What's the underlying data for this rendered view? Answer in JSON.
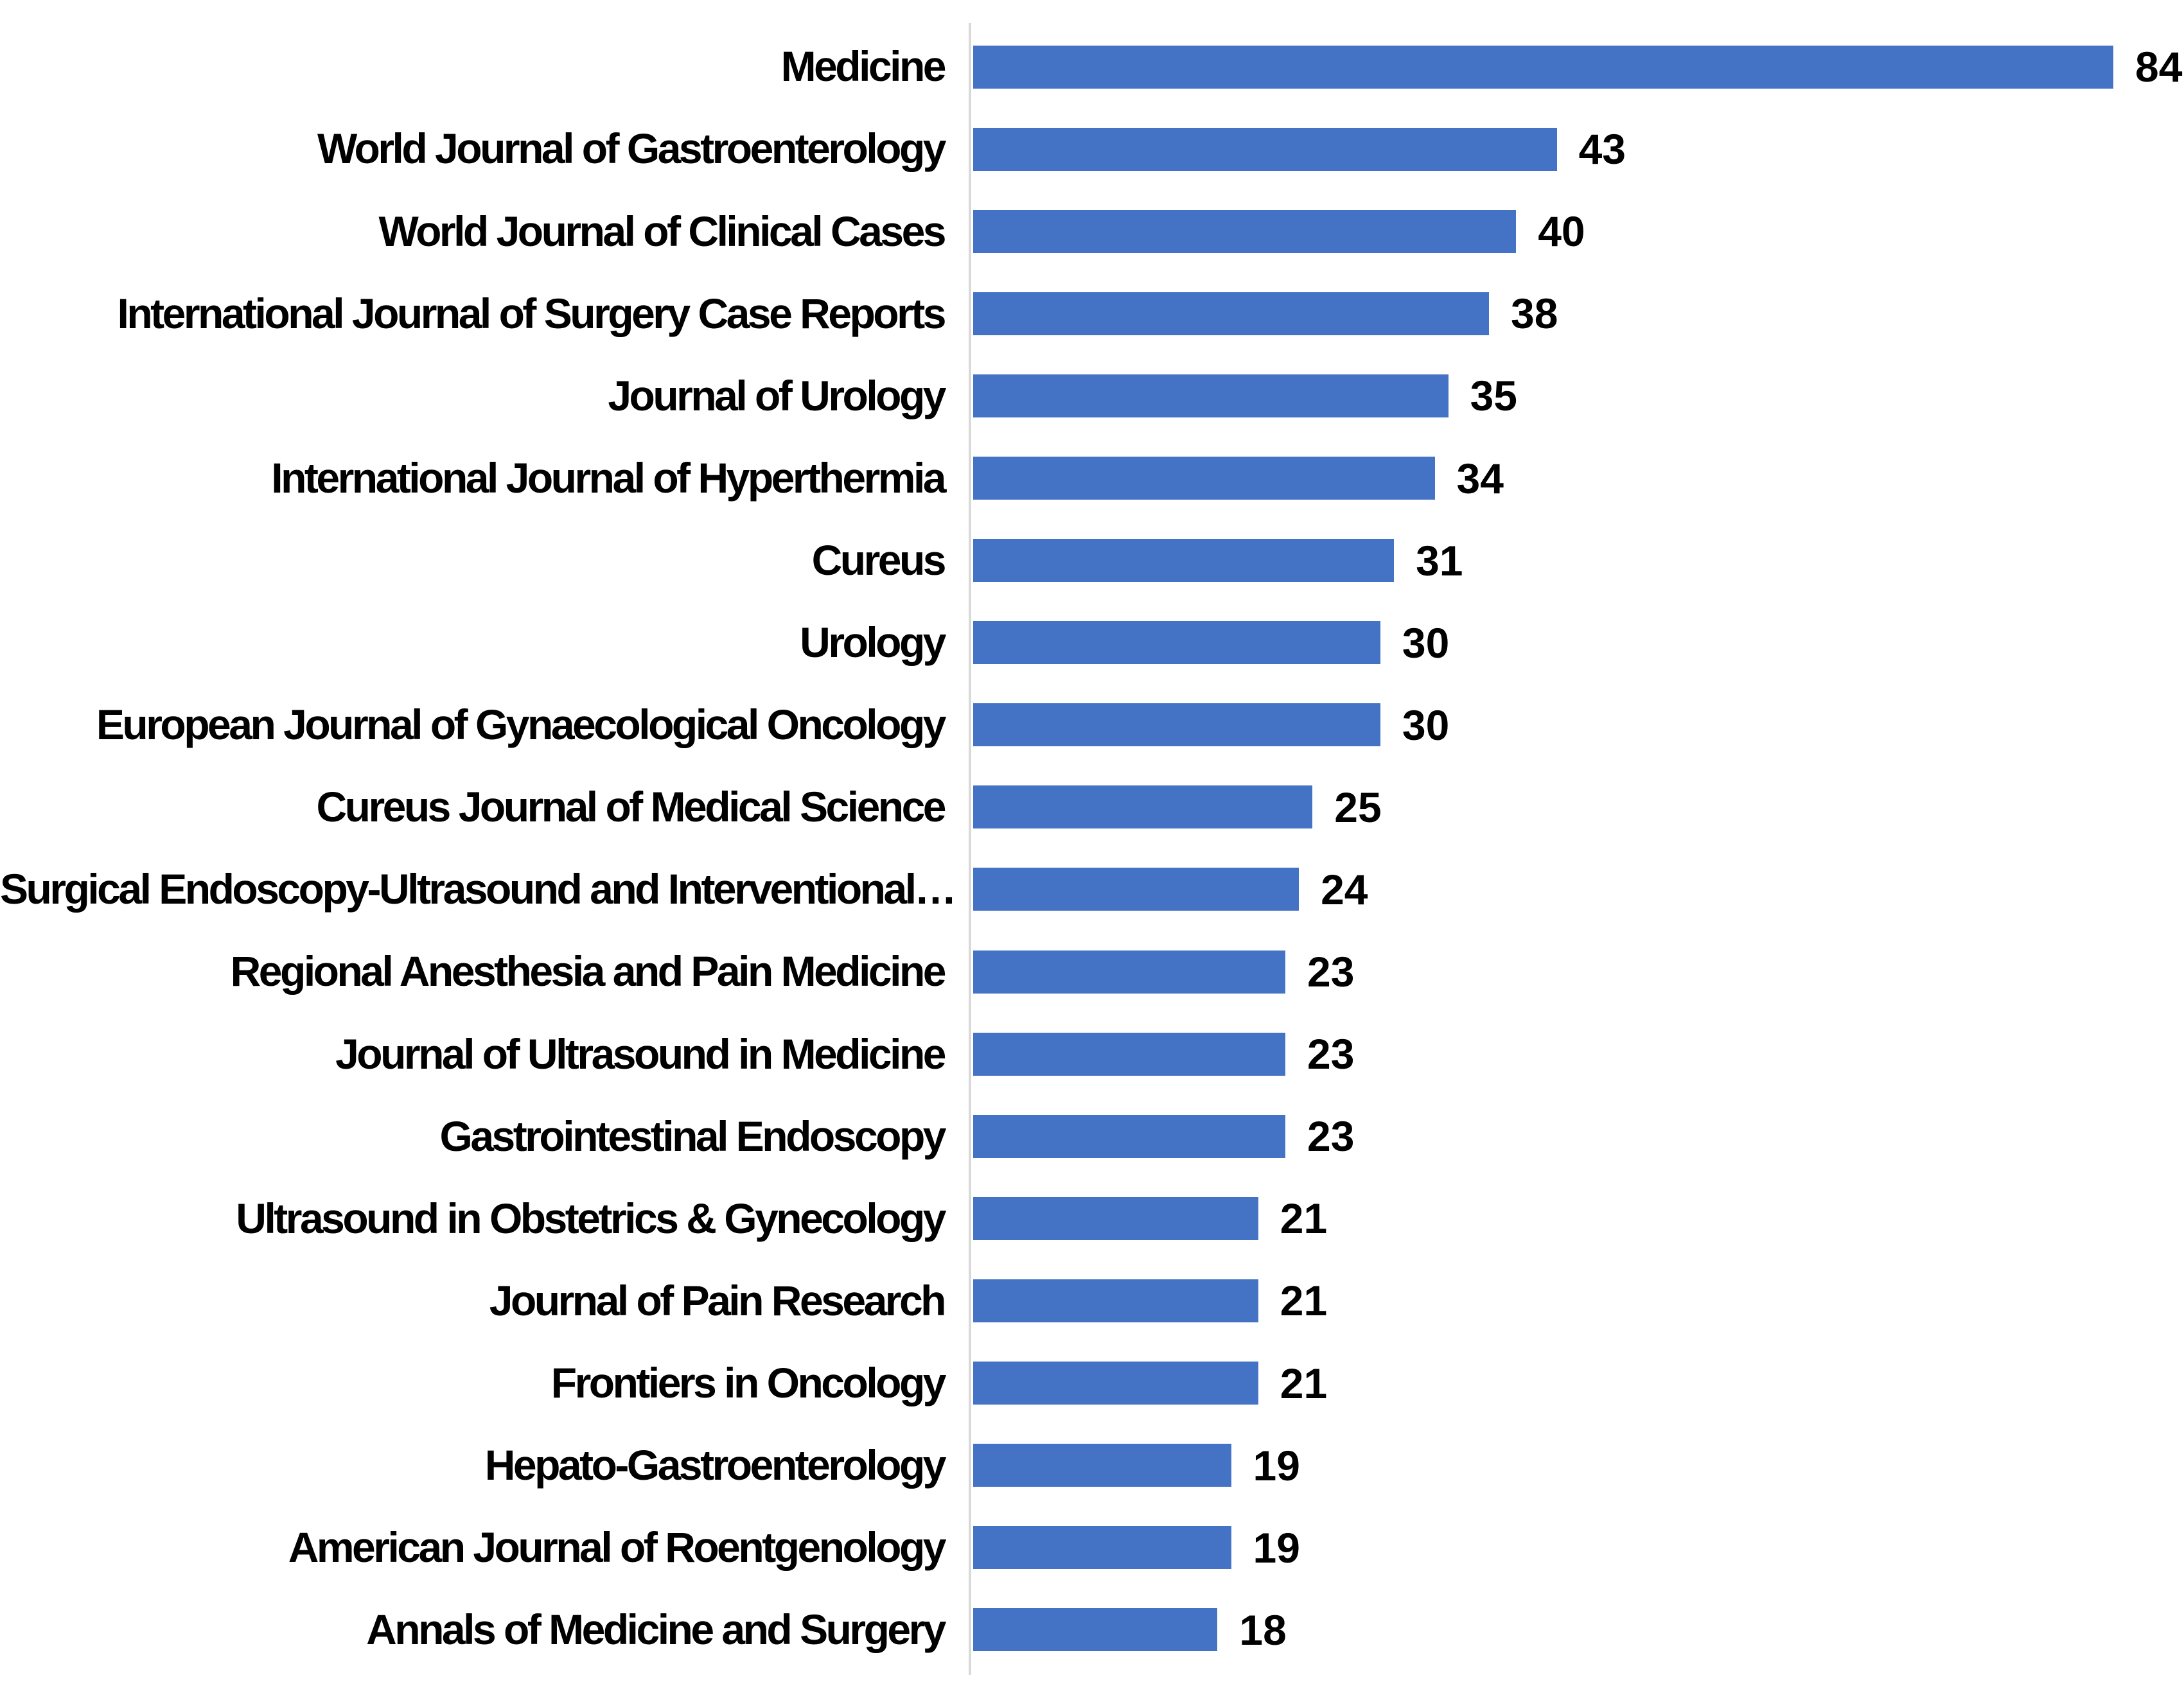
{
  "chart_data": {
    "type": "bar",
    "orientation": "horizontal",
    "title": "",
    "xlabel": "",
    "ylabel": "",
    "grid": false,
    "legend": false,
    "xlim": [
      0,
      84
    ],
    "bar_color": "#4472C4",
    "axis_line_color": "#D9D9D9",
    "text_color": "#000000",
    "categories": [
      "Medicine",
      "World Journal of Gastroenterology",
      "World Journal of Clinical Cases",
      "International Journal of Surgery Case Reports",
      "Journal of Urology",
      "International Journal of Hyperthermia",
      "Cureus",
      "Urology",
      "European Journal of Gynaecological Oncology",
      "Cureus Journal of Medical Science",
      "Surgical Endoscopy-Ultrasound and Interventional…",
      "Regional Anesthesia and Pain Medicine",
      "Journal of Ultrasound in Medicine",
      "Gastrointestinal Endoscopy",
      "Ultrasound in Obstetrics & Gynecology",
      "Journal of Pain Research",
      "Frontiers in Oncology",
      "Hepato-Gastroenterology",
      "American Journal of Roentgenology",
      "Annals of Medicine and Surgery"
    ],
    "values": [
      84,
      43,
      40,
      38,
      35,
      34,
      31,
      30,
      30,
      25,
      24,
      23,
      23,
      23,
      21,
      21,
      21,
      19,
      19,
      18
    ]
  }
}
